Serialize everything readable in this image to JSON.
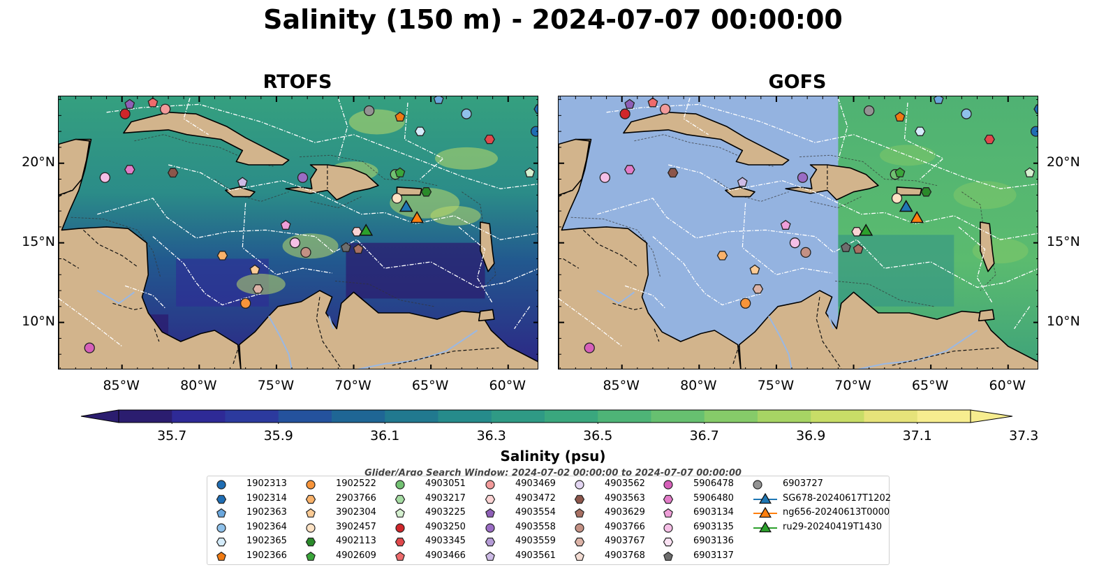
{
  "title": "Salinity (150 m) - 2024-07-07 00:00:00",
  "panels": [
    {
      "name": "rtofs",
      "title": "RTOFS"
    },
    {
      "name": "gofs",
      "title": "GOFS"
    }
  ],
  "lon_labels": [
    "85°W",
    "80°W",
    "75°W",
    "70°W",
    "65°W",
    "60°W"
  ],
  "lat_labels": [
    "20°N",
    "15°N",
    "10°N"
  ],
  "colorbar": {
    "label": "Salinity (psu)",
    "ticks": [
      "35.7",
      "35.9",
      "36.1",
      "36.3",
      "36.5",
      "36.7",
      "36.9",
      "37.1",
      "37.3"
    ],
    "colors": [
      "#2b1d6f",
      "#2e2a96",
      "#2c3a9e",
      "#24529d",
      "#1f6695",
      "#21798f",
      "#268b8b",
      "#2f9a85",
      "#3aa77e",
      "#4eb477",
      "#67c070",
      "#86cb69",
      "#a7d464",
      "#c8dd67",
      "#e6e37a",
      "#f7ed8f"
    ]
  },
  "search_window": "Glider/Argo Search Window: 2024-07-02 00:00:00 to 2024-07-07 00:00:00",
  "legend": [
    {
      "label": "1902313",
      "color": "#1f6db3",
      "marker": "circle"
    },
    {
      "label": "1902314",
      "color": "#1f6db3",
      "marker": "hexagon"
    },
    {
      "label": "1902363",
      "color": "#6aa7dd",
      "marker": "pentagon"
    },
    {
      "label": "1902364",
      "color": "#8fc1ea",
      "marker": "circle"
    },
    {
      "label": "1902365",
      "color": "#d5ecfb",
      "marker": "hexagon"
    },
    {
      "label": "1902366",
      "color": "#f07a12",
      "marker": "pentagon"
    },
    {
      "label": "1902522",
      "color": "#f7943a",
      "marker": "circle"
    },
    {
      "label": "2903766",
      "color": "#f9b26a",
      "marker": "hexagon"
    },
    {
      "label": "3902304",
      "color": "#fbcb95",
      "marker": "pentagon"
    },
    {
      "label": "3902457",
      "color": "#fde2c4",
      "marker": "circle"
    },
    {
      "label": "4902113",
      "color": "#2a8a2a",
      "marker": "hexagon"
    },
    {
      "label": "4902609",
      "color": "#3aa63a",
      "marker": "pentagon"
    },
    {
      "label": "4903051",
      "color": "#72c172",
      "marker": "circle"
    },
    {
      "label": "4903217",
      "color": "#a6dca3",
      "marker": "hexagon"
    },
    {
      "label": "4903225",
      "color": "#d5f0d0",
      "marker": "pentagon"
    },
    {
      "label": "4903250",
      "color": "#d0262a",
      "marker": "circle"
    },
    {
      "label": "4903345",
      "color": "#e0484b",
      "marker": "hexagon"
    },
    {
      "label": "4903466",
      "color": "#ee6b6c",
      "marker": "pentagon"
    },
    {
      "label": "4903469",
      "color": "#f29a9a",
      "marker": "circle"
    },
    {
      "label": "4903472",
      "color": "#fbd3d3",
      "marker": "hexagon"
    },
    {
      "label": "4903554",
      "color": "#8e5fb7",
      "marker": "pentagon"
    },
    {
      "label": "4903558",
      "color": "#9a6cc4",
      "marker": "circle"
    },
    {
      "label": "4903559",
      "color": "#b49bd6",
      "marker": "hexagon"
    },
    {
      "label": "4903561",
      "color": "#cdbbe6",
      "marker": "pentagon"
    },
    {
      "label": "4903562",
      "color": "#e3d6f2",
      "marker": "circle"
    },
    {
      "label": "4903563",
      "color": "#8c564b",
      "marker": "hexagon"
    },
    {
      "label": "4903629",
      "color": "#a87063",
      "marker": "pentagon"
    },
    {
      "label": "4903766",
      "color": "#c49184",
      "marker": "circle"
    },
    {
      "label": "4903767",
      "color": "#dcb3a7",
      "marker": "hexagon"
    },
    {
      "label": "4903768",
      "color": "#f3dcd3",
      "marker": "pentagon"
    },
    {
      "label": "5906478",
      "color": "#d65fb9",
      "marker": "circle"
    },
    {
      "label": "5906480",
      "color": "#e27cc8",
      "marker": "hexagon"
    },
    {
      "label": "6903134",
      "color": "#ee9ed8",
      "marker": "pentagon"
    },
    {
      "label": "6903135",
      "color": "#f5bfe6",
      "marker": "circle"
    },
    {
      "label": "6903136",
      "color": "#fbe2f3",
      "marker": "hexagon"
    },
    {
      "label": "6903137",
      "color": "#6e6e6e",
      "marker": "pentagon"
    },
    {
      "label": "6903727",
      "color": "#939393",
      "marker": "circle"
    },
    {
      "label": "SG678-20240617T1202",
      "color": "#1f77b4",
      "marker": "triangle"
    },
    {
      "label": "ng656-20240613T0000",
      "color": "#ff7f0e",
      "marker": "triangle"
    },
    {
      "label": "ru29-20240419T1430",
      "color": "#2ca02c",
      "marker": "triangle"
    }
  ],
  "floats": [
    {
      "lon": -84.5,
      "lat": 23.7,
      "color": "#8e5fb7",
      "marker": "pentagon"
    },
    {
      "lon": -83.0,
      "lat": 23.8,
      "color": "#ee6b6c",
      "marker": "pentagon"
    },
    {
      "lon": -84.8,
      "lat": 23.1,
      "color": "#d0262a",
      "marker": "circle"
    },
    {
      "lon": -82.2,
      "lat": 23.4,
      "color": "#f29a9a",
      "marker": "circle"
    },
    {
      "lon": -69.0,
      "lat": 23.3,
      "color": "#939393",
      "marker": "circle"
    },
    {
      "lon": -67.0,
      "lat": 22.9,
      "color": "#f07a12",
      "marker": "pentagon"
    },
    {
      "lon": -64.5,
      "lat": 24.0,
      "color": "#6aa7dd",
      "marker": "pentagon"
    },
    {
      "lon": -62.7,
      "lat": 23.1,
      "color": "#8fc1ea",
      "marker": "circle"
    },
    {
      "lon": -58.0,
      "lat": 23.4,
      "color": "#1f6db3",
      "marker": "hexagon"
    },
    {
      "lon": -65.7,
      "lat": 22.0,
      "color": "#d5ecfb",
      "marker": "hexagon"
    },
    {
      "lon": -61.2,
      "lat": 21.5,
      "color": "#e0484b",
      "marker": "hexagon"
    },
    {
      "lon": -58.2,
      "lat": 22.0,
      "color": "#1f6db3",
      "marker": "circle"
    },
    {
      "lon": -86.1,
      "lat": 19.1,
      "color": "#f5bfe6",
      "marker": "circle"
    },
    {
      "lon": -84.5,
      "lat": 19.6,
      "color": "#e27cc8",
      "marker": "hexagon"
    },
    {
      "lon": -81.7,
      "lat": 19.4,
      "color": "#8c564b",
      "marker": "hexagon"
    },
    {
      "lon": -77.2,
      "lat": 18.8,
      "color": "#cdbbe6",
      "marker": "pentagon"
    },
    {
      "lon": -73.3,
      "lat": 19.1,
      "color": "#9a6cc4",
      "marker": "circle"
    },
    {
      "lon": -67.3,
      "lat": 19.3,
      "color": "#72c172",
      "marker": "circle"
    },
    {
      "lon": -67.0,
      "lat": 19.4,
      "color": "#3aa63a",
      "marker": "pentagon"
    },
    {
      "lon": -65.3,
      "lat": 18.2,
      "color": "#2a8a2a",
      "marker": "hexagon"
    },
    {
      "lon": -67.2,
      "lat": 17.8,
      "color": "#fde2c4",
      "marker": "circle"
    },
    {
      "lon": -58.6,
      "lat": 19.4,
      "color": "#d5f0d0",
      "marker": "pentagon"
    },
    {
      "lon": -74.4,
      "lat": 16.1,
      "color": "#ee9ed8",
      "marker": "pentagon"
    },
    {
      "lon": -73.8,
      "lat": 15.0,
      "color": "#f5bfe6",
      "marker": "circle"
    },
    {
      "lon": -73.1,
      "lat": 14.4,
      "color": "#c49184",
      "marker": "circle"
    },
    {
      "lon": -69.8,
      "lat": 15.7,
      "color": "#fbd3d3",
      "marker": "hexagon"
    },
    {
      "lon": -70.5,
      "lat": 14.7,
      "color": "#6e6e6e",
      "marker": "pentagon"
    },
    {
      "lon": -69.7,
      "lat": 14.6,
      "color": "#a87063",
      "marker": "pentagon"
    },
    {
      "lon": -78.5,
      "lat": 14.2,
      "color": "#f9b26a",
      "marker": "hexagon"
    },
    {
      "lon": -76.4,
      "lat": 13.3,
      "color": "#fbcb95",
      "marker": "pentagon"
    },
    {
      "lon": -76.2,
      "lat": 12.1,
      "color": "#dcb3a7",
      "marker": "hexagon"
    },
    {
      "lon": -77.0,
      "lat": 11.2,
      "color": "#f7943a",
      "marker": "circle"
    },
    {
      "lon": -87.1,
      "lat": 8.4,
      "color": "#d65fb9",
      "marker": "circle"
    }
  ],
  "gliders": [
    {
      "lon": -66.6,
      "lat": 17.2,
      "color": "#1f77b4"
    },
    {
      "lon": -65.9,
      "lat": 16.5,
      "color": "#ff7f0e"
    },
    {
      "lon": -69.2,
      "lat": 15.7,
      "color": "#2ca02c"
    }
  ]
}
